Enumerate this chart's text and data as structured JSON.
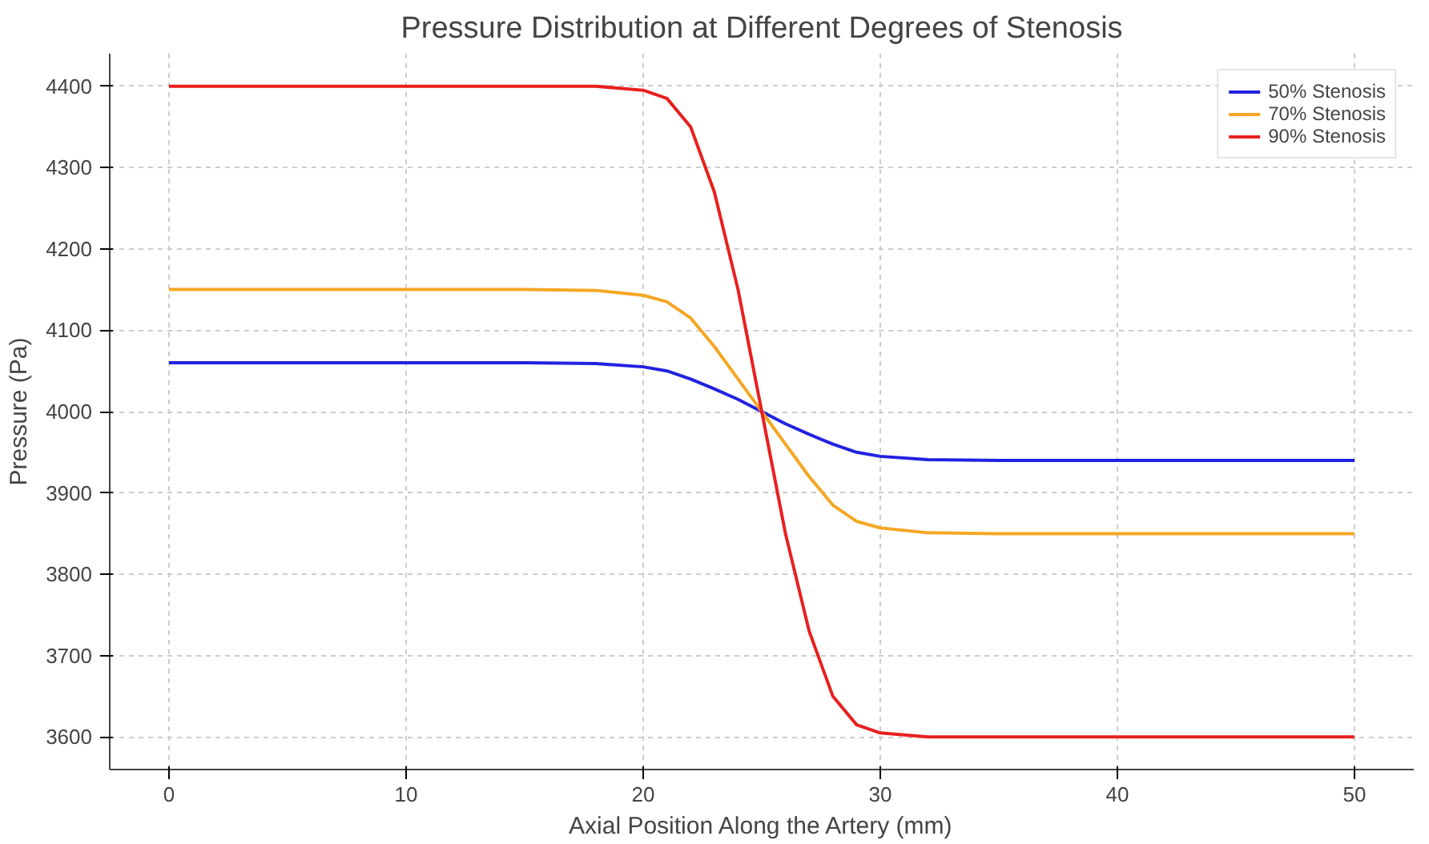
{
  "chart_data": {
    "type": "line",
    "title": "Pressure Distribution at Different Degrees of Stenosis",
    "xlabel": "Axial Position Along the Artery (mm)",
    "ylabel": "Pressure (Pa)",
    "x": [
      0,
      5,
      10,
      15,
      18,
      20,
      21,
      22,
      23,
      24,
      25,
      26,
      27,
      28,
      29,
      30,
      32,
      35,
      40,
      45,
      50
    ],
    "series": [
      {
        "name": "50% Stenosis",
        "color": "#2222e0",
        "values": [
          4060,
          4060,
          4060,
          4060,
          4059,
          4055,
          4050,
          4040,
          4028,
          4015,
          4000,
          3985,
          3972,
          3960,
          3950,
          3945,
          3941,
          3940,
          3940,
          3940,
          3940
        ]
      },
      {
        "name": "70% Stenosis",
        "color": "#f5a623",
        "values": [
          4150,
          4150,
          4150,
          4150,
          4149,
          4143,
          4135,
          4115,
          4080,
          4040,
          4000,
          3960,
          3920,
          3885,
          3865,
          3857,
          3851,
          3850,
          3850,
          3850,
          3850
        ]
      },
      {
        "name": "90% Stenosis",
        "color": "#e8201e",
        "values": [
          4400,
          4400,
          4400,
          4400,
          4400,
          4395,
          4385,
          4350,
          4270,
          4150,
          4000,
          3850,
          3730,
          3650,
          3615,
          3605,
          3600,
          3600,
          3600,
          3600,
          3600
        ]
      }
    ],
    "xlim": [
      -2.5,
      52.5
    ],
    "ylim": [
      3560,
      4440
    ],
    "xticks": [
      0,
      10,
      20,
      30,
      40,
      50
    ],
    "yticks": [
      3600,
      3700,
      3800,
      3900,
      4000,
      4100,
      4200,
      4300,
      4400
    ],
    "grid": true,
    "legend": "top right",
    "line_style": "solid"
  }
}
